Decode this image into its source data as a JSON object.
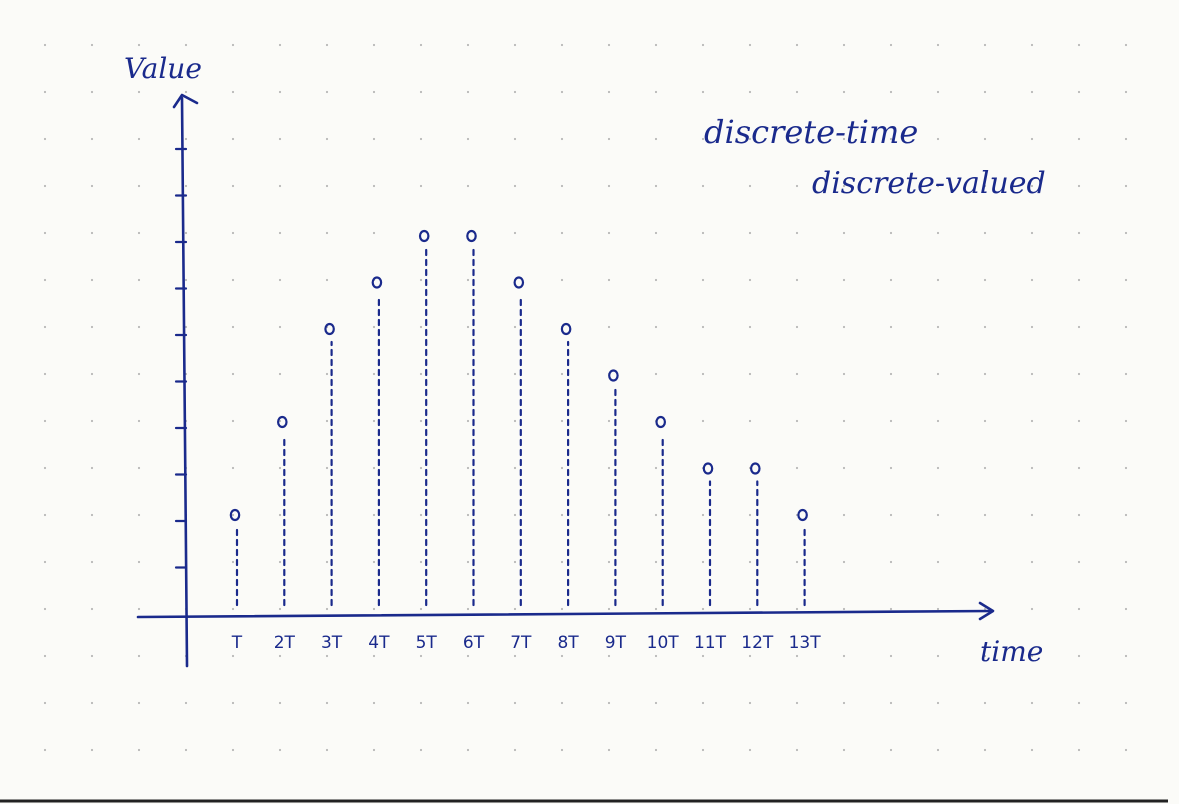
{
  "chart_data": {
    "type": "scatter",
    "style": "stem",
    "ylabel": "Value",
    "xlabel": "time",
    "annotations": [
      "discrete-time",
      "discrete-valued"
    ],
    "categories": [
      "T",
      "2T",
      "3T",
      "4T",
      "5T",
      "6T",
      "7T",
      "8T",
      "9T",
      "10T",
      "11T",
      "12T",
      "13T"
    ],
    "values": [
      2,
      4,
      6,
      7,
      8,
      8,
      7,
      6,
      5,
      4,
      3,
      3,
      2
    ],
    "ylim": [
      0,
      10
    ],
    "y_ticks_count": 10,
    "grid": "dotted",
    "colors": {
      "ink": "#1a2a8c",
      "paper": "#fbfbf8",
      "dots": "#b8b8b8",
      "border": "#222222"
    }
  }
}
